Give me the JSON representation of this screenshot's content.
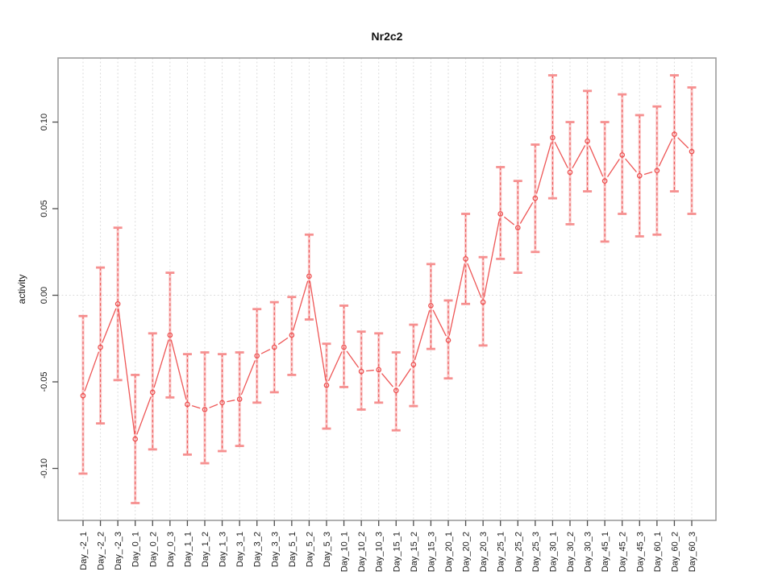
{
  "chart_data": {
    "type": "line",
    "title": "Nr2c2",
    "ylabel": "activity",
    "xlabel": "",
    "legend_position": "none",
    "grid": {
      "vertical_dotted": true,
      "zero_reference_line": true
    },
    "categories": [
      "Day_-2_1",
      "Day_-2_2",
      "Day_-2_3",
      "Day_0_1",
      "Day_0_2",
      "Day_0_3",
      "Day_1_1",
      "Day_1_2",
      "Day_1_3",
      "Day_3_1",
      "Day_3_2",
      "Day_3_3",
      "Day_5_1",
      "Day_5_2",
      "Day_5_3",
      "Day_10_1",
      "Day_10_2",
      "Day_10_3",
      "Day_15_1",
      "Day_15_2",
      "Day_15_3",
      "Day_20_1",
      "Day_20_2",
      "Day_20_3",
      "Day_25_1",
      "Day_25_2",
      "Day_25_3",
      "Day_30_1",
      "Day_30_2",
      "Day_30_3",
      "Day_45_1",
      "Day_45_2",
      "Day_45_3",
      "Day_60_1",
      "Day_60_2",
      "Day_60_3"
    ],
    "series": [
      {
        "name": "activity",
        "marker": "open-circle",
        "values": [
          -0.058,
          -0.03,
          -0.005,
          -0.083,
          -0.056,
          -0.023,
          -0.063,
          -0.066,
          -0.062,
          -0.06,
          -0.035,
          -0.03,
          -0.023,
          0.011,
          -0.052,
          -0.03,
          -0.044,
          -0.043,
          -0.055,
          -0.04,
          -0.006,
          -0.026,
          0.021,
          -0.004,
          0.047,
          0.039,
          0.056,
          0.091,
          0.071,
          0.089,
          0.066,
          0.081,
          0.069,
          0.072,
          0.093,
          0.083
        ],
        "upper": [
          -0.012,
          0.016,
          0.039,
          -0.046,
          -0.022,
          0.013,
          -0.034,
          -0.033,
          -0.034,
          -0.033,
          -0.008,
          -0.004,
          -0.001,
          0.035,
          -0.028,
          -0.006,
          -0.021,
          -0.022,
          -0.033,
          -0.017,
          0.018,
          -0.003,
          0.047,
          0.022,
          0.074,
          0.066,
          0.087,
          0.127,
          0.1,
          0.118,
          0.1,
          0.116,
          0.104,
          0.109,
          0.127,
          0.12
        ],
        "lower": [
          -0.103,
          -0.074,
          -0.049,
          -0.12,
          -0.089,
          -0.059,
          -0.092,
          -0.097,
          -0.09,
          -0.087,
          -0.062,
          -0.056,
          -0.046,
          -0.014,
          -0.077,
          -0.053,
          -0.066,
          -0.062,
          -0.078,
          -0.064,
          -0.031,
          -0.048,
          -0.005,
          -0.029,
          0.021,
          0.013,
          0.025,
          0.056,
          0.041,
          0.06,
          0.031,
          0.047,
          0.034,
          0.035,
          0.06,
          0.047
        ]
      }
    ],
    "yticks": [
      -0.1,
      -0.05,
      0.0,
      0.05,
      0.1
    ],
    "ytick_labels": [
      "-0.10",
      "-0.05",
      "0.00",
      "0.05",
      "0.10"
    ],
    "ylim": [
      -0.13,
      0.137
    ],
    "colors": {
      "line": "#ee5656",
      "point_stroke": "#ed4f4f",
      "errorbar_dash": "#ed5858",
      "errorbar_underlay": "rgba(247,140,140,0.45)",
      "errorbar_cap": "#f69090",
      "grid": "#d9d9d9",
      "box": "#9c9c9c",
      "tick": "#4d4d4d",
      "text": "#1a1a1a",
      "background": "#ffffff"
    }
  }
}
